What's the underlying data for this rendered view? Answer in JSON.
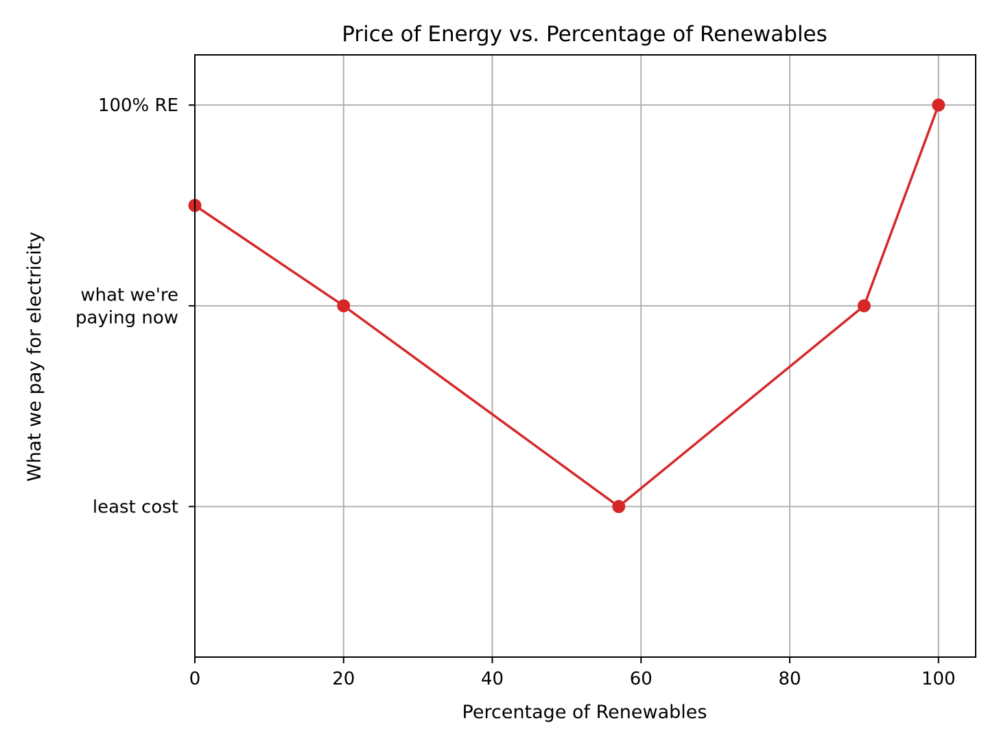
{
  "chart_data": {
    "type": "line",
    "title": "Price of Energy vs. Percentage of Renewables",
    "xlabel": "Percentage of Renewables",
    "ylabel": "What we pay for electricity",
    "x": [
      0,
      20,
      57,
      90,
      100
    ],
    "series": [
      {
        "values": [
          2.5,
          2,
          1,
          2,
          3
        ]
      }
    ],
    "xlim": [
      0,
      105
    ],
    "ylim": [
      0.25,
      3.25
    ],
    "xticks": [
      0,
      20,
      40,
      60,
      80,
      100
    ],
    "xtick_labels": [
      "0",
      "20",
      "40",
      "60",
      "80",
      "100"
    ],
    "yticks": [
      1,
      2,
      3
    ],
    "ytick_labels": [
      [
        "least cost"
      ],
      [
        "what we're",
        "paying now"
      ],
      [
        "100% RE"
      ]
    ],
    "grid": true,
    "line_color": "#d62728",
    "marker": "circle"
  }
}
